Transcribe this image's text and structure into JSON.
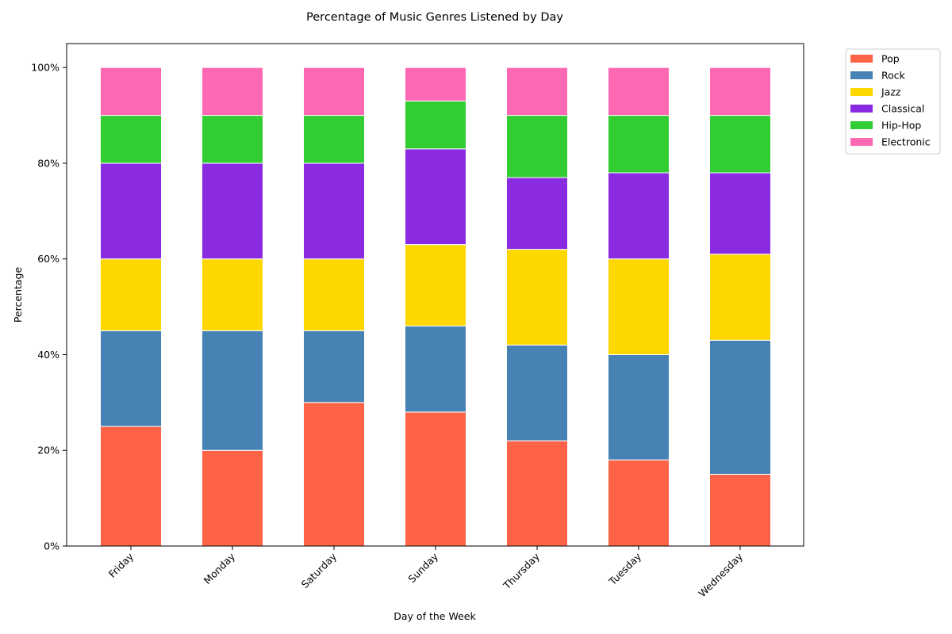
{
  "chart_data": {
    "type": "bar",
    "stacked": true,
    "title": "Percentage of Music Genres Listened by Day",
    "xlabel": "Day of the Week",
    "ylabel": "Percentage",
    "ylim": [
      0,
      105
    ],
    "yticks": [
      "0%",
      "20%",
      "40%",
      "60%",
      "80%",
      "100%"
    ],
    "ytick_values": [
      0,
      20,
      40,
      60,
      80,
      100
    ],
    "grid": false,
    "legend_position": "outside-top-right",
    "categories": [
      "Friday",
      "Monday",
      "Saturday",
      "Sunday",
      "Thursday",
      "Tuesday",
      "Wednesday"
    ],
    "series": [
      {
        "name": "Pop",
        "color": "#ff6347",
        "values": [
          25,
          20,
          30,
          28,
          22,
          18,
          15
        ]
      },
      {
        "name": "Rock",
        "color": "#4682b4",
        "values": [
          20,
          25,
          15,
          18,
          20,
          22,
          28
        ]
      },
      {
        "name": "Jazz",
        "color": "#ffd700",
        "values": [
          15,
          15,
          15,
          17,
          20,
          20,
          18
        ]
      },
      {
        "name": "Classical",
        "color": "#8a2be2",
        "values": [
          20,
          20,
          20,
          20,
          15,
          18,
          17
        ]
      },
      {
        "name": "Hip-Hop",
        "color": "#32cd32",
        "values": [
          10,
          10,
          10,
          10,
          13,
          12,
          12
        ]
      },
      {
        "name": "Electronic",
        "color": "#ff69b4",
        "values": [
          10,
          10,
          10,
          7,
          10,
          10,
          10
        ]
      }
    ]
  }
}
